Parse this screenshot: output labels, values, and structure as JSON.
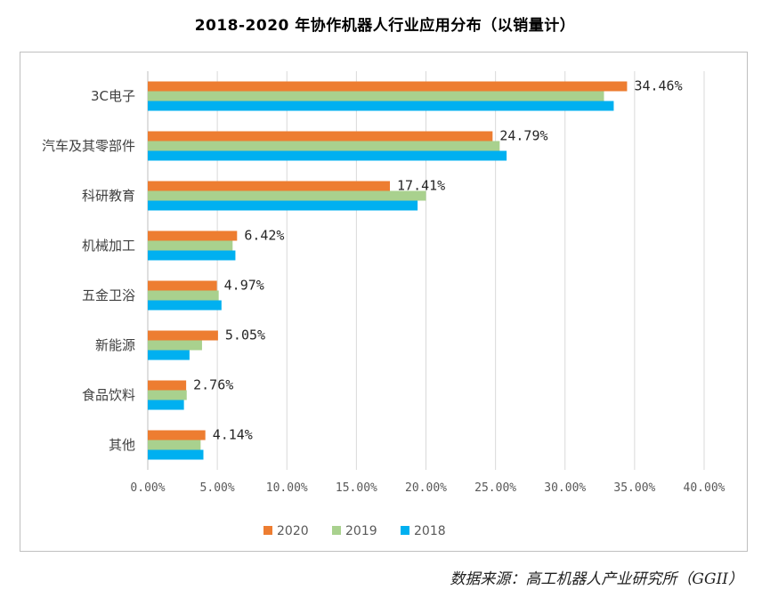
{
  "chart_data": {
    "type": "bar",
    "orientation": "horizontal",
    "title": "2018-2020 年协作机器人行业应用分布（以销量计）",
    "categories": [
      "3C电子",
      "汽车及其零部件",
      "科研教育",
      "机械加工",
      "五金卫浴",
      "新能源",
      "食品饮料",
      "其他"
    ],
    "series": [
      {
        "name": "2020",
        "color": "#ED7D31",
        "values": [
          34.46,
          24.79,
          17.41,
          6.42,
          4.97,
          5.05,
          2.76,
          4.14
        ]
      },
      {
        "name": "2019",
        "color": "#A9D18E",
        "values": [
          32.8,
          25.3,
          20.0,
          6.1,
          5.1,
          3.9,
          2.8,
          3.8
        ]
      },
      {
        "name": "2018",
        "color": "#00B0F0",
        "values": [
          33.5,
          25.8,
          19.4,
          6.3,
          5.3,
          3.0,
          2.6,
          4.0
        ]
      }
    ],
    "data_labels": [
      "34.46%",
      "24.79%",
      "17.41%",
      "6.42%",
      "4.97%",
      "5.05%",
      "2.76%",
      "4.14%"
    ],
    "x_ticks": [
      "0.00%",
      "5.00%",
      "10.00%",
      "15.00%",
      "20.00%",
      "25.00%",
      "30.00%",
      "35.00%",
      "40.00%"
    ],
    "xlim": [
      0,
      40
    ],
    "grid": true,
    "legend_position": "bottom"
  },
  "source": "数据来源：高工机器人产业研究所（GGII）"
}
